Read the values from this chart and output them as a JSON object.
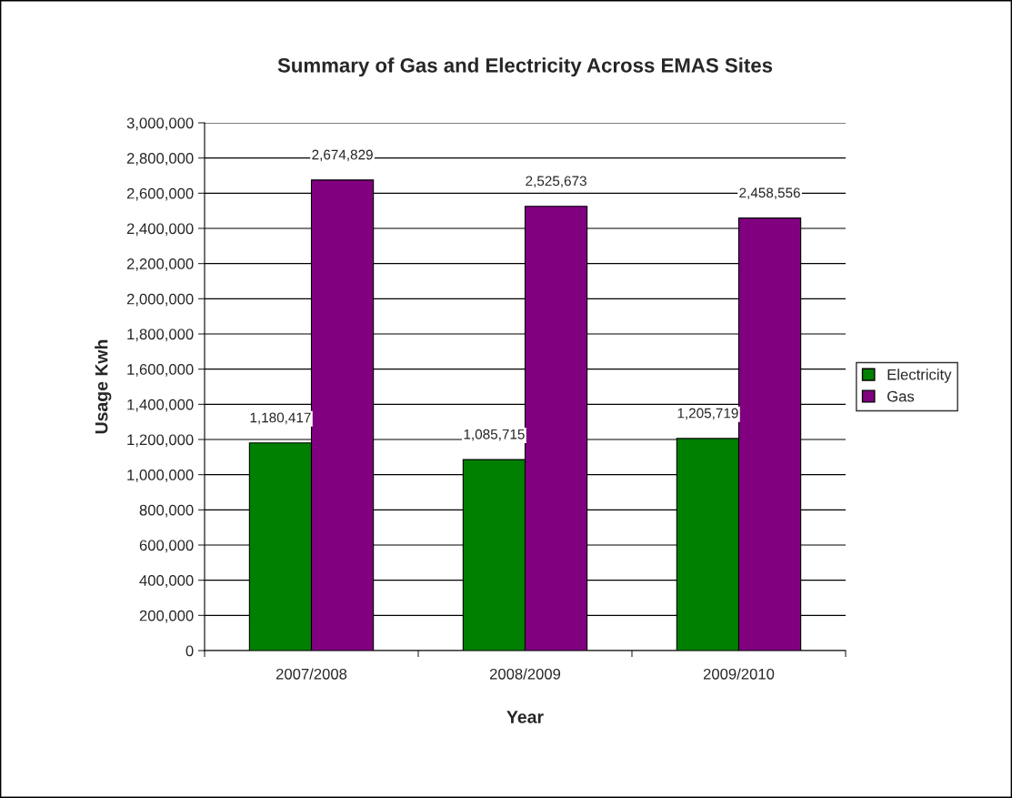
{
  "chart_data": {
    "type": "bar",
    "title": "Summary of Gas and Electricity Across EMAS Sites",
    "xlabel": "Year",
    "ylabel": "Usage Kwh",
    "categories": [
      "2007/2008",
      "2008/2009",
      "2009/2010"
    ],
    "series": [
      {
        "name": "Electricity",
        "color": "#008000",
        "values": [
          1180417,
          1085715,
          1205719
        ],
        "value_labels": [
          "1,180,417",
          "1,085,715",
          "1,205,719"
        ]
      },
      {
        "name": "Gas",
        "color": "#800080",
        "values": [
          2674829,
          2525673,
          2458556
        ],
        "value_labels": [
          "2,674,829",
          "2,525,673",
          "2,458,556"
        ]
      }
    ],
    "ylim": [
      0,
      3000000
    ],
    "yticks": [
      {
        "value": 0,
        "label": "0"
      },
      {
        "value": 200000,
        "label": "200,000"
      },
      {
        "value": 400000,
        "label": "400,000"
      },
      {
        "value": 600000,
        "label": "600,000"
      },
      {
        "value": 800000,
        "label": "800,000"
      },
      {
        "value": 1000000,
        "label": "1,000,000"
      },
      {
        "value": 1200000,
        "label": "1,200,000"
      },
      {
        "value": 1400000,
        "label": "1,400,000"
      },
      {
        "value": 1600000,
        "label": "1,600,000"
      },
      {
        "value": 1800000,
        "label": "1,800,000"
      },
      {
        "value": 2000000,
        "label": "2,000,000"
      },
      {
        "value": 2200000,
        "label": "2,200,000"
      },
      {
        "value": 2400000,
        "label": "2,400,000"
      },
      {
        "value": 2600000,
        "label": "2,600,000"
      },
      {
        "value": 2800000,
        "label": "2,800,000"
      },
      {
        "value": 3000000,
        "label": "3,000,000"
      }
    ],
    "grid": "y",
    "legend": "right"
  }
}
